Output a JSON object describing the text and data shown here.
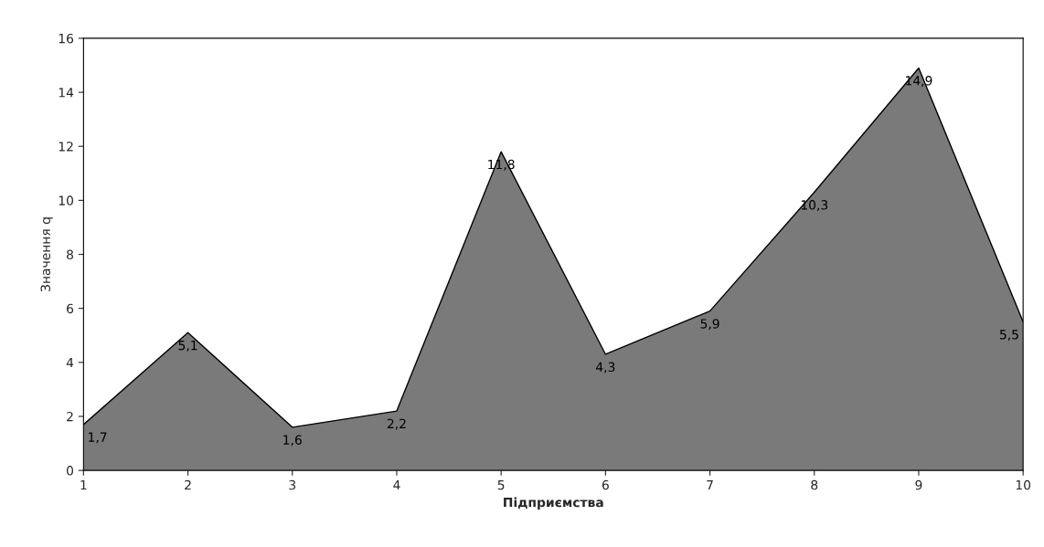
{
  "chart_data": {
    "type": "area",
    "xlabel": "Підприємства",
    "ylabel": "Значення q",
    "x": [
      1,
      2,
      3,
      4,
      5,
      6,
      7,
      8,
      9,
      10
    ],
    "series": [
      {
        "color": "#7a7a7a",
        "values": [
          1.7,
          5.1,
          1.6,
          2.2,
          11.8,
          4.3,
          5.9,
          10.3,
          14.9,
          5.5
        ],
        "value_labels": [
          "1,7",
          "5,1",
          "1,6",
          "2,2",
          "11,8",
          "4,3",
          "5,9",
          "10,3",
          "14,9",
          "5,5"
        ]
      }
    ],
    "xlim": [
      1,
      10
    ],
    "xticks": [
      1,
      2,
      3,
      4,
      5,
      6,
      7,
      8,
      9,
      10
    ],
    "ylim": [
      0,
      16
    ],
    "yticks": [
      0,
      2,
      4,
      6,
      8,
      10,
      12,
      14,
      16
    ],
    "grid": false
  }
}
